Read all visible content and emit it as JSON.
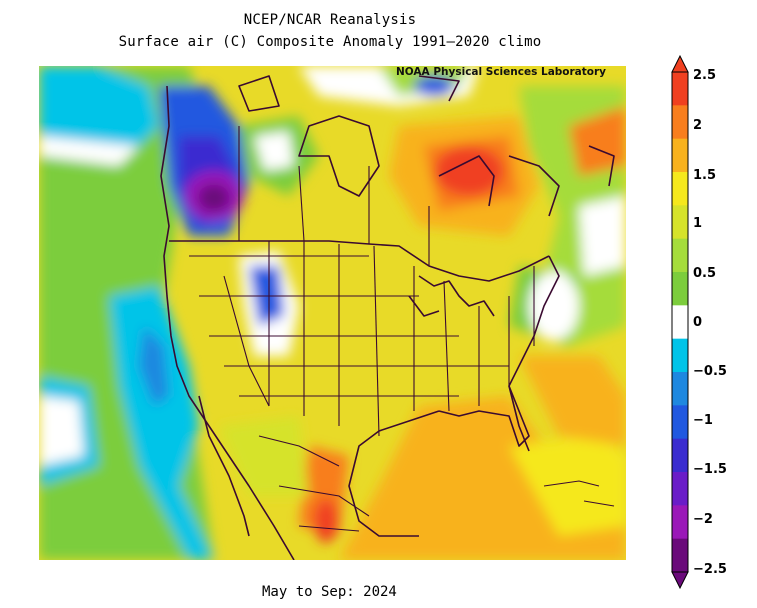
{
  "title": {
    "line1": "NCEP/NCAR Reanalysis",
    "line2": "Surface air (C) Composite Anomaly 1991–2020 climo"
  },
  "credit": "NOAA Physical Sciences Laboratory",
  "period": "May to Sep: 2024",
  "colorbar": {
    "labels": [
      "2.5",
      "2",
      "1.5",
      "1",
      "0.5",
      "0",
      "−0.5",
      "−1",
      "−1.5",
      "−2",
      "−2.5"
    ],
    "colors": [
      "#f04020",
      "#f87e1e",
      "#f8b21e",
      "#f5e81c",
      "#d6e32a",
      "#a5dc3b",
      "#7ccd3c",
      "#ffffff",
      "#00c4e8",
      "#1e88e0",
      "#2058e0",
      "#3a2cd0",
      "#6a1cc8",
      "#9a18b8",
      "#6a0a7a"
    ]
  },
  "map": {
    "background_color": "#e8da28",
    "features": [
      "north-america-coastlines",
      "us-state-boundaries",
      "canada-province-boundaries",
      "mexico-state-boundaries"
    ]
  }
}
